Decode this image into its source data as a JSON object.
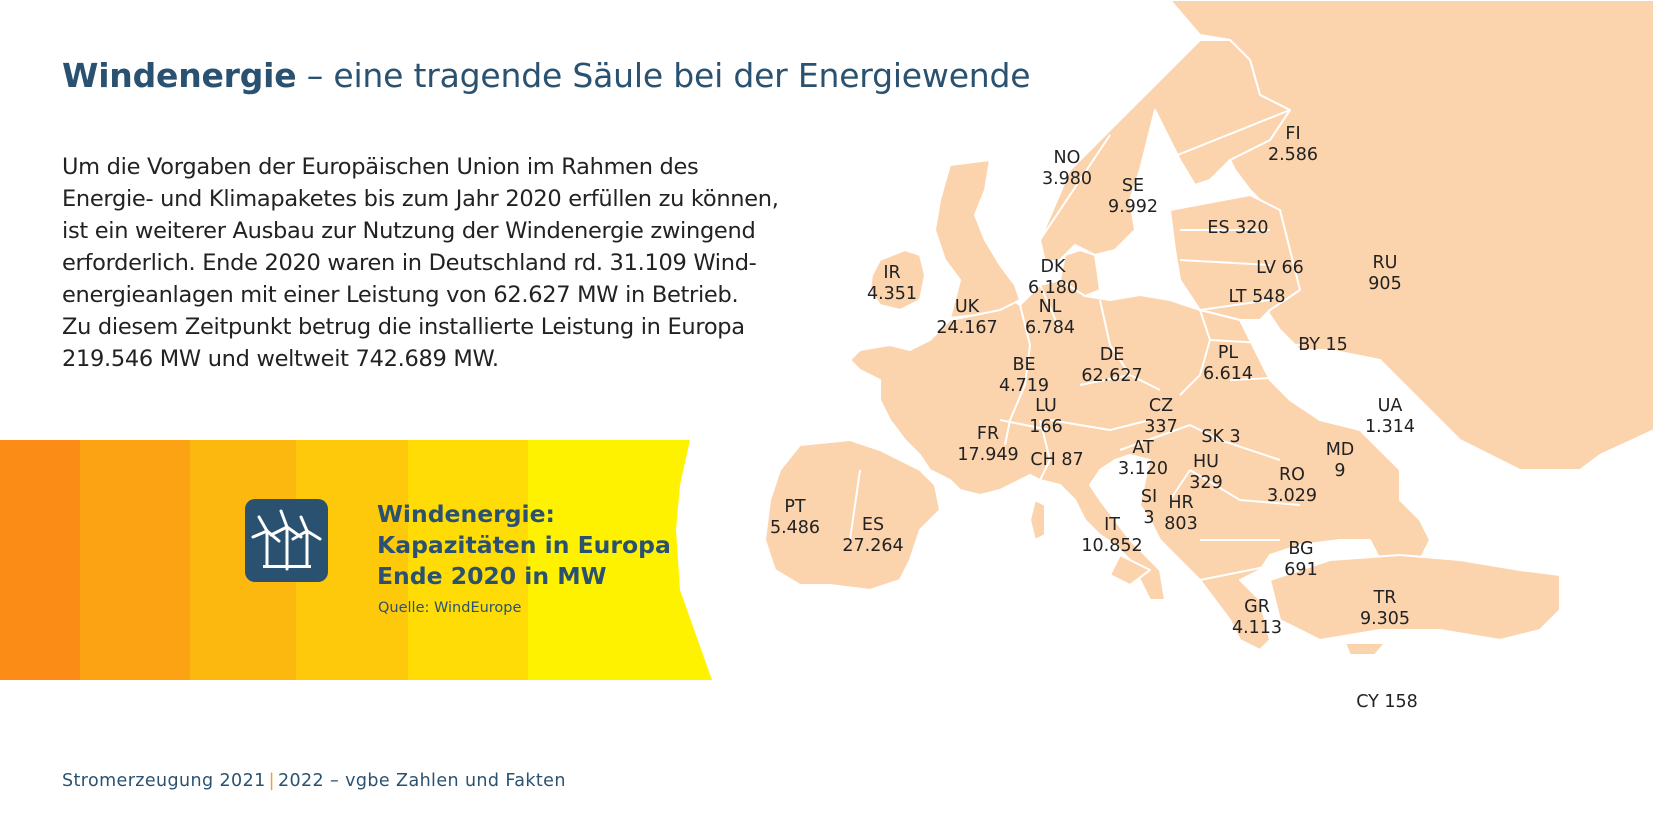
{
  "title": {
    "bold": "Windenergie",
    "rest": " – eine tragende Säule bei der Energiewende"
  },
  "intro_lines": [
    "Um die Vorgaben der Europäischen Union im Rahmen des",
    "Energie- und Klimapaketes bis zum Jahr 2020 erfüllen zu können,",
    "ist ein weiterer Ausbau zur Nutzung der Windenergie zwingend",
    "erforderlich. Ende 2020 waren in Deutschland rd. 31.109 Wind-",
    "energieanlagen mit einer Leistung von 62.627 MW in Betrieb.",
    "Zu diesem Zeitpunkt betrug die installierte Leistung in Europa",
    "219.546 MW und weltweit 742.689 MW."
  ],
  "infobox": {
    "icon": "wind-turbines-icon",
    "title_lines": [
      "Windenergie:",
      "Kapazitäten in Europa",
      "Ende 2020 in MW"
    ],
    "source": "Quelle: WindEurope"
  },
  "map": {
    "land_color": "#fbd3ad",
    "border_color": "#ffffff",
    "countries": [
      {
        "code": "FI",
        "value": "2.586"
      },
      {
        "code": "NO",
        "value": "3.980"
      },
      {
        "code": "SE",
        "value": "9.992"
      },
      {
        "code": "ES 320",
        "value": ""
      },
      {
        "code": "LV 66",
        "value": ""
      },
      {
        "code": "RU",
        "value": "905"
      },
      {
        "code": "DK",
        "value": "6.180"
      },
      {
        "code": "IR",
        "value": "4.351"
      },
      {
        "code": "LT 548",
        "value": ""
      },
      {
        "code": "UK",
        "value": "24.167"
      },
      {
        "code": "NL",
        "value": "6.784"
      },
      {
        "code": "BY 15",
        "value": ""
      },
      {
        "code": "PL",
        "value": "6.614"
      },
      {
        "code": "DE",
        "value": "62.627"
      },
      {
        "code": "BE",
        "value": "4.719"
      },
      {
        "code": "LU",
        "value": "166"
      },
      {
        "code": "CZ",
        "value": "337"
      },
      {
        "code": "UA",
        "value": "1.314"
      },
      {
        "code": "FR",
        "value": "17.949"
      },
      {
        "code": "SK 3",
        "value": ""
      },
      {
        "code": "AT",
        "value": "3.120"
      },
      {
        "code": "CH 87",
        "value": ""
      },
      {
        "code": "HU",
        "value": "329"
      },
      {
        "code": "MD",
        "value": "9"
      },
      {
        "code": "RO",
        "value": "3.029"
      },
      {
        "code": "SI",
        "value": "3"
      },
      {
        "code": "HR",
        "value": "803"
      },
      {
        "code": "PT",
        "value": "5.486"
      },
      {
        "code": "IT",
        "value": "10.852"
      },
      {
        "code": "ES",
        "value": "27.264"
      },
      {
        "code": "BG",
        "value": "691"
      },
      {
        "code": "GR",
        "value": "4.113"
      },
      {
        "code": "TR",
        "value": "9.305"
      },
      {
        "code": "CY 158",
        "value": ""
      }
    ]
  },
  "footer": {
    "left": "Stromerzeugung 2021",
    "separator": "|",
    "right": "2022 – vgbe Zahlen und Fakten"
  }
}
